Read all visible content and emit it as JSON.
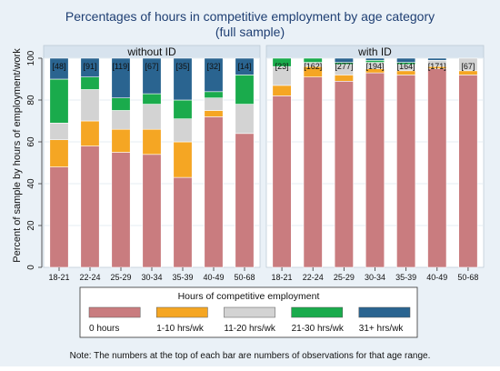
{
  "chart_data": {
    "type": "bar",
    "stacked": true,
    "title": "Percentages of hours in competitive employment by age category",
    "subtitle": "(full sample)",
    "ylabel": "Percent of sample by hours of employment/work",
    "ylim": [
      0,
      100
    ],
    "yticks": [
      0,
      20,
      40,
      60,
      80,
      100
    ],
    "categories": [
      "18-21",
      "22-24",
      "25-29",
      "30-34",
      "35-39",
      "40-49",
      "50-68"
    ],
    "legend": {
      "title": "Hours of competitive employment",
      "placement": "bottom"
    },
    "series_meta": [
      {
        "name": "0 hours",
        "color": "#c97c7f"
      },
      {
        "name": "1-10 hrs/wk",
        "color": "#f5a623"
      },
      {
        "name": "11-20 hrs/wk",
        "color": "#d3d3d3"
      },
      {
        "name": "21-30 hrs/wk",
        "color": "#1aab4c"
      },
      {
        "name": "31+ hrs/wk",
        "color": "#2a6490"
      }
    ],
    "panels": [
      {
        "title": "without ID",
        "counts": [
          "[48]",
          "[91]",
          "[119]",
          "[67]",
          "[35]",
          "[32]",
          "[14]"
        ],
        "values": [
          [
            48,
            58,
            55,
            54,
            43,
            72,
            64
          ],
          [
            13,
            12,
            11,
            12,
            17,
            3,
            0
          ],
          [
            8,
            15,
            9,
            12,
            11,
            6,
            14
          ],
          [
            21,
            6,
            6,
            5,
            9,
            3,
            14
          ],
          [
            10,
            9,
            19,
            17,
            20,
            16,
            8
          ]
        ]
      },
      {
        "title": "with ID",
        "counts": [
          "[23]",
          "[162]",
          "[277]",
          "[194]",
          "[164]",
          "[171]",
          "[67]"
        ],
        "values": [
          [
            82,
            91,
            89,
            93,
            92,
            95,
            92
          ],
          [
            5,
            5,
            3,
            2,
            2,
            1,
            2
          ],
          [
            9,
            2,
            5,
            3,
            3,
            3,
            6
          ],
          [
            4,
            2,
            1,
            1,
            1,
            0,
            0
          ],
          [
            0,
            0,
            2,
            1,
            2,
            1,
            0
          ]
        ]
      }
    ],
    "note": "Note: The numbers at the top of each bar are numbers of observations for that age range.",
    "colors": {
      "background": "#eaf1f7",
      "panel_header": "#d7e3ee",
      "plot_bg": "#ffffff",
      "grid": "#e4ecf3",
      "title": "#1f3f73"
    }
  }
}
